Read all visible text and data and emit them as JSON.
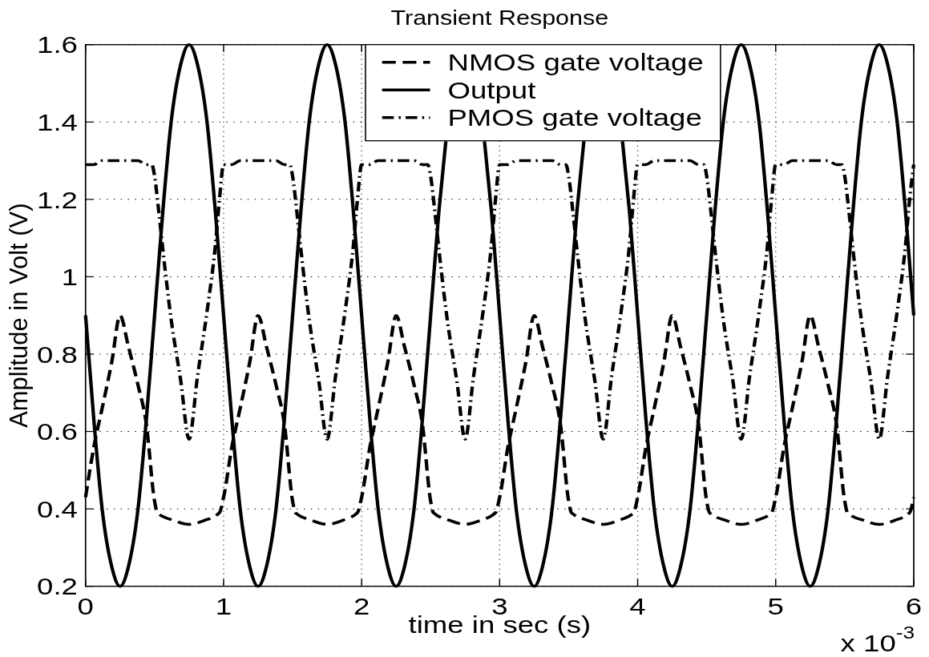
{
  "chart_data": {
    "type": "line",
    "title": "Transient Response",
    "xlabel": "time in sec (s)",
    "ylabel": "Amplitude in Volt (V)",
    "annotations": [
      "x 10$^{-3}$"
    ],
    "xlim": [
      0,
      6
    ],
    "xticks": [
      0,
      1,
      2,
      3,
      4,
      5,
      6
    ],
    "ylim": [
      0.2,
      1.6
    ],
    "yticks": [
      0.2,
      0.4,
      0.6,
      0.8,
      1,
      1.2,
      1.4,
      1.6
    ],
    "grid": true,
    "legend": "top",
    "series": [
      {
        "name": "NMOS gate voltage",
        "color": "#000000",
        "line_style": "dashed",
        "x": [
          0,
          0.06,
          0.12,
          0.19,
          0.25,
          0.31,
          0.38,
          0.44,
          0.5,
          0.52,
          0.64,
          0.75,
          0.86,
          0.97,
          1,
          1.06,
          1.12,
          1.19,
          1.25,
          1.31,
          1.38,
          1.44,
          1.5,
          1.52,
          1.64,
          1.75,
          1.86,
          1.97,
          2,
          2.06,
          2.12,
          2.19,
          2.25,
          2.31,
          2.38,
          2.44,
          2.5,
          2.52,
          2.64,
          2.75,
          2.86,
          2.97,
          3,
          3.06,
          3.12,
          3.19,
          3.25,
          3.31,
          3.38,
          3.44,
          3.5,
          3.52,
          3.64,
          3.75,
          3.86,
          3.97,
          4,
          4.06,
          4.12,
          4.19,
          4.25,
          4.31,
          4.38,
          4.44,
          4.5,
          4.52,
          4.64,
          4.75,
          4.86,
          4.97,
          5,
          5.06,
          5.12,
          5.19,
          5.25,
          5.31,
          5.38,
          5.44,
          5.5,
          5.52,
          5.64,
          5.75,
          5.86,
          5.97,
          6
        ],
        "values": [
          0.43,
          0.56,
          0.66,
          0.78,
          0.9,
          0.82,
          0.72,
          0.62,
          0.42,
          0.39,
          0.37,
          0.36,
          0.37,
          0.39,
          0.43,
          0.56,
          0.66,
          0.78,
          0.9,
          0.82,
          0.72,
          0.62,
          0.42,
          0.39,
          0.37,
          0.36,
          0.37,
          0.39,
          0.43,
          0.56,
          0.66,
          0.78,
          0.9,
          0.82,
          0.72,
          0.62,
          0.42,
          0.39,
          0.37,
          0.36,
          0.37,
          0.39,
          0.43,
          0.56,
          0.66,
          0.78,
          0.9,
          0.82,
          0.72,
          0.62,
          0.42,
          0.39,
          0.37,
          0.36,
          0.37,
          0.39,
          0.43,
          0.56,
          0.66,
          0.78,
          0.9,
          0.82,
          0.72,
          0.62,
          0.42,
          0.39,
          0.37,
          0.36,
          0.37,
          0.39,
          0.43,
          0.56,
          0.66,
          0.78,
          0.9,
          0.82,
          0.72,
          0.62,
          0.42,
          0.39,
          0.37,
          0.36,
          0.37,
          0.39,
          0.43
        ]
      },
      {
        "name": "Output",
        "color": "#000000",
        "line_style": "solid",
        "x": [
          0,
          0.06,
          0.12,
          0.19,
          0.25,
          0.31,
          0.38,
          0.44,
          0.5,
          0.56,
          0.62,
          0.69,
          0.75,
          0.81,
          0.88,
          0.94,
          1,
          1.06,
          1.12,
          1.19,
          1.25,
          1.31,
          1.38,
          1.44,
          1.5,
          1.56,
          1.62,
          1.69,
          1.75,
          1.81,
          1.88,
          1.94,
          2,
          2.06,
          2.12,
          2.19,
          2.25,
          2.31,
          2.38,
          2.44,
          2.5,
          2.56,
          2.61,
          2.75,
          2.89,
          2.94,
          3,
          3.06,
          3.12,
          3.19,
          3.25,
          3.31,
          3.38,
          3.44,
          3.5,
          3.56,
          3.61,
          3.75,
          3.89,
          3.94,
          4,
          4.06,
          4.12,
          4.19,
          4.25,
          4.31,
          4.38,
          4.44,
          4.5,
          4.56,
          4.62,
          4.69,
          4.75,
          4.81,
          4.88,
          4.94,
          5,
          5.06,
          5.12,
          5.19,
          5.25,
          5.31,
          5.38,
          5.44,
          5.5,
          5.56,
          5.62,
          5.69,
          5.75,
          5.81,
          5.88,
          5.94,
          6
        ],
        "values": [
          0.9,
          0.63,
          0.4,
          0.25,
          0.2,
          0.25,
          0.4,
          0.63,
          0.9,
          1.17,
          1.4,
          1.55,
          1.6,
          1.55,
          1.4,
          1.17,
          0.9,
          0.63,
          0.4,
          0.25,
          0.2,
          0.25,
          0.4,
          0.63,
          0.9,
          1.17,
          1.4,
          1.55,
          1.6,
          1.55,
          1.4,
          1.17,
          0.9,
          0.63,
          0.4,
          0.25,
          0.2,
          0.25,
          0.4,
          0.63,
          0.9,
          1.17,
          1.35,
          null,
          1.35,
          1.17,
          0.9,
          0.63,
          0.4,
          0.25,
          0.2,
          0.25,
          0.4,
          0.63,
          0.9,
          1.17,
          1.35,
          null,
          1.35,
          1.17,
          0.9,
          0.63,
          0.4,
          0.25,
          0.2,
          0.25,
          0.4,
          0.63,
          0.9,
          1.17,
          1.4,
          1.55,
          1.6,
          1.55,
          1.4,
          1.17,
          0.9,
          0.63,
          0.4,
          0.25,
          0.2,
          0.25,
          0.4,
          0.63,
          0.9,
          1.17,
          1.4,
          1.55,
          1.6,
          1.55,
          1.4,
          1.17,
          0.9
        ]
      },
      {
        "name": "PMOS gate voltage",
        "color": "#000000",
        "line_style": "dashdot",
        "x": [
          0,
          0.06,
          0.12,
          0.19,
          0.25,
          0.31,
          0.38,
          0.44,
          0.48,
          0.5,
          0.53,
          0.56,
          0.62,
          0.69,
          0.75,
          0.81,
          0.88,
          0.94,
          0.97,
          1,
          1.06,
          1.12,
          1.19,
          1.25,
          1.31,
          1.38,
          1.44,
          1.48,
          1.5,
          1.53,
          1.56,
          1.62,
          1.69,
          1.75,
          1.81,
          1.88,
          1.94,
          1.97,
          2,
          2.06,
          2.12,
          2.19,
          2.25,
          2.31,
          2.38,
          2.44,
          2.48,
          2.5,
          2.53,
          2.56,
          2.62,
          2.69,
          2.75,
          2.81,
          2.88,
          2.94,
          2.97,
          3,
          3.06,
          3.12,
          3.19,
          3.25,
          3.31,
          3.38,
          3.44,
          3.48,
          3.5,
          3.53,
          3.56,
          3.62,
          3.69,
          3.75,
          3.81,
          3.88,
          3.94,
          3.97,
          4,
          4.06,
          4.12,
          4.19,
          4.25,
          4.31,
          4.38,
          4.44,
          4.48,
          4.5,
          4.53,
          4.56,
          4.62,
          4.69,
          4.75,
          4.81,
          4.88,
          4.94,
          4.97,
          5,
          5.06,
          5.12,
          5.19,
          5.25,
          5.31,
          5.38,
          5.44,
          5.48,
          5.5,
          5.53,
          5.56,
          5.62,
          5.69,
          5.75,
          5.81,
          5.88,
          5.94,
          5.97,
          6
        ],
        "values": [
          1.29,
          1.29,
          1.3,
          1.3,
          1.3,
          1.3,
          1.3,
          1.29,
          1.29,
          1.26,
          1.17,
          1.07,
          0.89,
          0.73,
          0.58,
          0.74,
          0.91,
          1.08,
          1.2,
          1.29,
          1.29,
          1.3,
          1.3,
          1.3,
          1.3,
          1.3,
          1.29,
          1.29,
          1.26,
          1.17,
          1.07,
          0.89,
          0.73,
          0.58,
          0.74,
          0.91,
          1.08,
          1.2,
          1.29,
          1.29,
          1.3,
          1.3,
          1.3,
          1.3,
          1.3,
          1.29,
          1.29,
          1.26,
          1.17,
          1.07,
          0.89,
          0.73,
          0.58,
          0.74,
          0.91,
          1.08,
          1.2,
          1.29,
          1.29,
          1.3,
          1.3,
          1.3,
          1.3,
          1.3,
          1.29,
          1.29,
          1.26,
          1.17,
          1.07,
          0.89,
          0.73,
          0.58,
          0.74,
          0.91,
          1.08,
          1.2,
          1.29,
          1.29,
          1.3,
          1.3,
          1.3,
          1.3,
          1.3,
          1.29,
          1.29,
          1.26,
          1.17,
          1.07,
          0.89,
          0.73,
          0.58,
          0.74,
          0.91,
          1.08,
          1.2,
          1.29,
          1.29,
          1.3,
          1.3,
          1.3,
          1.3,
          1.3,
          1.29,
          1.29,
          1.26,
          1.17,
          1.07,
          0.89,
          0.73,
          0.58,
          0.74,
          0.91,
          1.08,
          1.2,
          1.29
        ]
      }
    ]
  }
}
